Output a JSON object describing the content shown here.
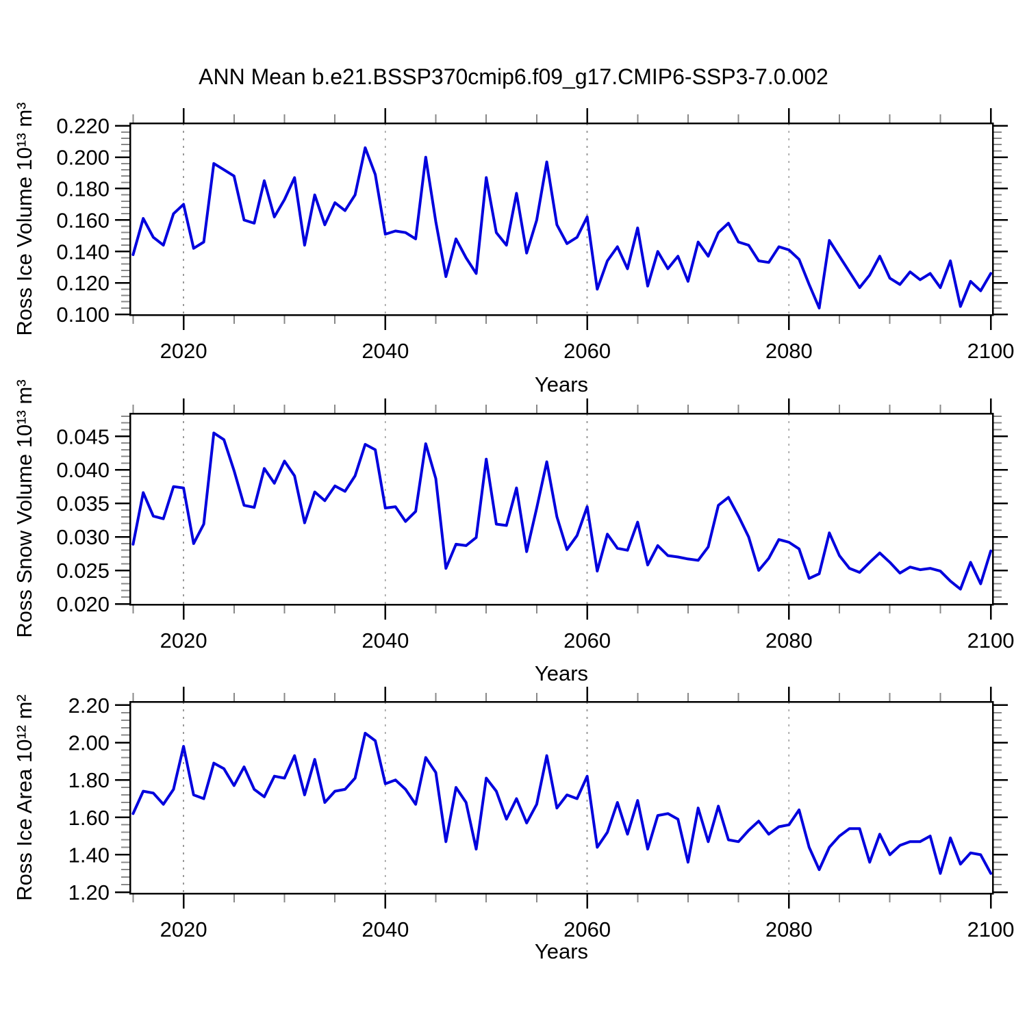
{
  "chart_data": {
    "type": "line",
    "title": "ANN Mean b.e21.BSSP370cmip6.f09_g17.CMIP6-SSP3-7.0.002",
    "line_color": "#0000dd",
    "grid": {
      "vertical_dashed_at": [
        2020,
        2040,
        2060,
        2080
      ],
      "color": "#999999"
    },
    "x": {
      "label": "Years",
      "ticks": [
        2020,
        2040,
        2060,
        2080,
        2100
      ],
      "tick_labels": [
        "2020",
        "2040",
        "2060",
        "2080",
        "2100"
      ],
      "minor_step": 5,
      "axis_range": [
        2014.7,
        2100.2
      ]
    },
    "years": [
      2015,
      2016,
      2017,
      2018,
      2019,
      2020,
      2021,
      2022,
      2023,
      2024,
      2025,
      2026,
      2027,
      2028,
      2029,
      2030,
      2031,
      2032,
      2033,
      2034,
      2035,
      2036,
      2037,
      2038,
      2039,
      2040,
      2041,
      2042,
      2043,
      2044,
      2045,
      2046,
      2047,
      2048,
      2049,
      2050,
      2051,
      2052,
      2053,
      2054,
      2055,
      2056,
      2057,
      2058,
      2059,
      2060,
      2061,
      2062,
      2063,
      2064,
      2065,
      2066,
      2067,
      2068,
      2069,
      2070,
      2071,
      2072,
      2073,
      2074,
      2075,
      2076,
      2077,
      2078,
      2079,
      2080,
      2081,
      2082,
      2083,
      2084,
      2085,
      2086,
      2087,
      2088,
      2089,
      2090,
      2091,
      2092,
      2093,
      2094,
      2095,
      2096,
      2097,
      2098,
      2099,
      2100
    ],
    "panels": [
      {
        "name": "ross-ice-volume",
        "ylabel": "Ross Ice Volume 10¹³ m³",
        "xlabel": "Years",
        "yticks": [
          0.1,
          0.12,
          0.14,
          0.16,
          0.18,
          0.2,
          0.22
        ],
        "ytick_labels": [
          "0.100",
          "0.120",
          "0.140",
          "0.160",
          "0.180",
          "0.200",
          "0.220"
        ],
        "y_minor_step": 0.004,
        "ylim": [
          0.1,
          0.22
        ],
        "axis_range": [
          0.0996,
          0.2216
        ],
        "values": [
          0.138,
          0.161,
          0.149,
          0.144,
          0.164,
          0.17,
          0.142,
          0.146,
          0.196,
          0.192,
          0.188,
          0.16,
          0.158,
          0.185,
          0.162,
          0.173,
          0.187,
          0.144,
          0.176,
          0.157,
          0.171,
          0.166,
          0.176,
          0.206,
          0.189,
          0.151,
          0.153,
          0.152,
          0.148,
          0.2,
          0.159,
          0.124,
          0.148,
          0.136,
          0.126,
          0.187,
          0.152,
          0.144,
          0.177,
          0.139,
          0.16,
          0.197,
          0.157,
          0.145,
          0.149,
          0.162,
          0.116,
          0.134,
          0.143,
          0.129,
          0.155,
          0.118,
          0.14,
          0.129,
          0.137,
          0.121,
          0.146,
          0.137,
          0.152,
          0.158,
          0.146,
          0.144,
          0.134,
          0.133,
          0.143,
          0.141,
          0.135,
          0.119,
          0.104,
          0.147,
          0.137,
          0.127,
          0.117,
          0.125,
          0.137,
          0.123,
          0.119,
          0.127,
          0.122,
          0.126,
          0.117,
          0.134,
          0.105,
          0.121,
          0.115,
          0.126
        ]
      },
      {
        "name": "ross-snow-volume",
        "ylabel": "Ross Snow Volume 10¹³ m³",
        "xlabel": "Years",
        "yticks": [
          0.02,
          0.025,
          0.03,
          0.035,
          0.04,
          0.045
        ],
        "ytick_labels": [
          "0.020",
          "0.025",
          "0.030",
          "0.035",
          "0.040",
          "0.045"
        ],
        "y_minor_step": 0.001,
        "ylim": [
          0.02,
          0.045
        ],
        "axis_range": [
          0.0199,
          0.0484
        ],
        "values": [
          0.0289,
          0.0366,
          0.0331,
          0.0327,
          0.0375,
          0.0373,
          0.029,
          0.0319,
          0.0455,
          0.0445,
          0.0399,
          0.0347,
          0.0344,
          0.0402,
          0.038,
          0.0413,
          0.0391,
          0.0321,
          0.0367,
          0.0354,
          0.0376,
          0.0368,
          0.0391,
          0.0438,
          0.043,
          0.0343,
          0.0345,
          0.0323,
          0.0338,
          0.0439,
          0.0387,
          0.0253,
          0.0289,
          0.0287,
          0.0299,
          0.0416,
          0.0319,
          0.0317,
          0.0373,
          0.0278,
          0.0343,
          0.0412,
          0.033,
          0.0281,
          0.0302,
          0.0345,
          0.0249,
          0.0304,
          0.0283,
          0.028,
          0.0322,
          0.0258,
          0.0287,
          0.0272,
          0.027,
          0.0267,
          0.0265,
          0.0285,
          0.0347,
          0.0359,
          0.0331,
          0.03,
          0.025,
          0.0268,
          0.0296,
          0.0292,
          0.0282,
          0.0238,
          0.0245,
          0.0306,
          0.0272,
          0.0253,
          0.0247,
          0.0262,
          0.0276,
          0.0262,
          0.0246,
          0.0255,
          0.0251,
          0.0253,
          0.0249,
          0.0234,
          0.0222,
          0.0262,
          0.023,
          0.0279
        ]
      },
      {
        "name": "ross-ice-area",
        "ylabel": "Ross Ice Area 10¹² m²",
        "xlabel": "Years",
        "yticks": [
          1.2,
          1.4,
          1.6,
          1.8,
          2.0,
          2.2
        ],
        "ytick_labels": [
          "1.20",
          "1.40",
          "1.60",
          "1.80",
          "2.00",
          "2.20"
        ],
        "y_minor_step": 0.04,
        "ylim": [
          1.2,
          2.2
        ],
        "axis_range": [
          1.1927,
          2.2183
        ],
        "values": [
          1.62,
          1.74,
          1.73,
          1.67,
          1.75,
          1.98,
          1.72,
          1.7,
          1.89,
          1.86,
          1.77,
          1.87,
          1.75,
          1.71,
          1.82,
          1.81,
          1.93,
          1.72,
          1.91,
          1.68,
          1.74,
          1.75,
          1.81,
          2.05,
          2.01,
          1.78,
          1.8,
          1.75,
          1.67,
          1.92,
          1.84,
          1.47,
          1.76,
          1.68,
          1.43,
          1.81,
          1.74,
          1.59,
          1.7,
          1.57,
          1.67,
          1.93,
          1.65,
          1.72,
          1.7,
          1.82,
          1.44,
          1.52,
          1.68,
          1.51,
          1.69,
          1.43,
          1.61,
          1.62,
          1.59,
          1.36,
          1.65,
          1.47,
          1.66,
          1.48,
          1.47,
          1.53,
          1.58,
          1.51,
          1.55,
          1.56,
          1.64,
          1.44,
          1.32,
          1.44,
          1.5,
          1.54,
          1.54,
          1.36,
          1.51,
          1.4,
          1.45,
          1.47,
          1.47,
          1.5,
          1.3,
          1.49,
          1.35,
          1.41,
          1.4,
          1.3
        ]
      }
    ]
  }
}
